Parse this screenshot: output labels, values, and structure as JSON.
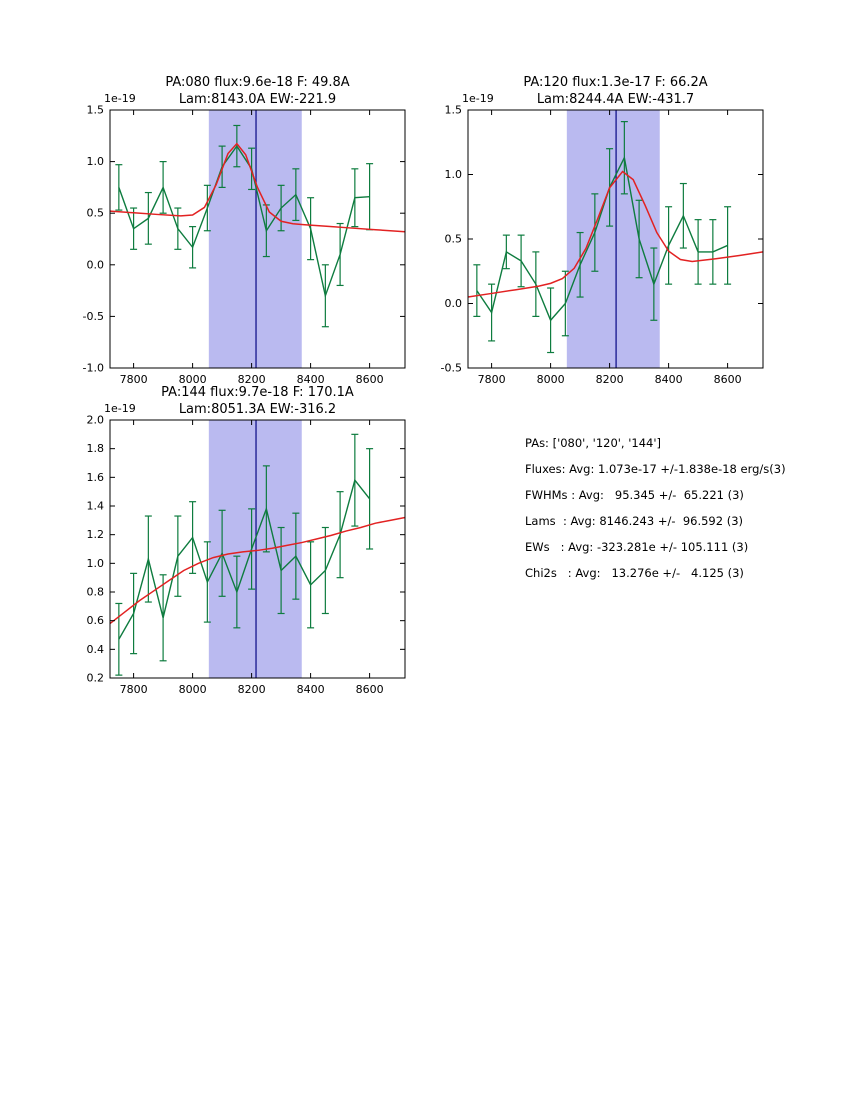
{
  "colors": {
    "data_line": "#0e7c3f",
    "fit_line": "#e22222",
    "band": "#babaf0",
    "vline": "#14148c",
    "axis": "#000000",
    "background": "#ffffff"
  },
  "chart_data": [
    {
      "type": "line",
      "title_line1": "PA:080 flux:9.6e-18 F: 49.8A",
      "title_line2": "Lam:8143.0A EW:-221.9",
      "y_offset_label": "1e-19",
      "xlim": [
        7720,
        8720
      ],
      "ylim": [
        -1.0,
        1.5
      ],
      "xticks": [
        "7800",
        "8000",
        "8200",
        "8400",
        "8600"
      ],
      "yticks": [
        "-1.0",
        "-0.5",
        "0.0",
        "0.5",
        "1.0",
        "1.5"
      ],
      "band": [
        8055,
        8370
      ],
      "vline": 8215,
      "series": [
        {
          "name": "data",
          "x": [
            7750,
            7800,
            7850,
            7900,
            7950,
            8000,
            8050,
            8100,
            8150,
            8200,
            8250,
            8300,
            8350,
            8400,
            8450,
            8500,
            8550,
            8600
          ],
          "y": [
            0.75,
            0.35,
            0.45,
            0.75,
            0.35,
            0.17,
            0.55,
            0.95,
            1.15,
            0.93,
            0.33,
            0.55,
            0.68,
            0.35,
            -0.3,
            0.1,
            0.65,
            0.66
          ],
          "yerr": [
            0.22,
            0.2,
            0.25,
            0.25,
            0.2,
            0.2,
            0.22,
            0.2,
            0.2,
            0.2,
            0.25,
            0.22,
            0.25,
            0.3,
            0.3,
            0.3,
            0.28,
            0.32
          ]
        },
        {
          "name": "fit",
          "x": [
            7720,
            7800,
            7880,
            7960,
            8000,
            8040,
            8080,
            8120,
            8150,
            8180,
            8220,
            8260,
            8300,
            8340,
            8380,
            8460,
            8540,
            8620,
            8720
          ],
          "y": [
            0.52,
            0.504,
            0.488,
            0.474,
            0.482,
            0.556,
            0.777,
            1.078,
            1.174,
            1.066,
            0.749,
            0.512,
            0.422,
            0.398,
            0.388,
            0.372,
            0.356,
            0.34,
            0.32
          ]
        }
      ]
    },
    {
      "type": "line",
      "title_line1": "PA:120 flux:1.3e-17 F: 66.2A",
      "title_line2": "Lam:8244.4A EW:-431.7",
      "y_offset_label": "1e-19",
      "xlim": [
        7720,
        8720
      ],
      "ylim": [
        -0.5,
        1.5
      ],
      "xticks": [
        "7800",
        "8000",
        "8200",
        "8400",
        "8600"
      ],
      "yticks": [
        "-0.5",
        "0.0",
        "0.5",
        "1.0",
        "1.5"
      ],
      "band": [
        8055,
        8370
      ],
      "vline": 8222,
      "series": [
        {
          "name": "data",
          "x": [
            7750,
            7800,
            7850,
            7900,
            7950,
            8000,
            8050,
            8100,
            8150,
            8200,
            8250,
            8300,
            8350,
            8400,
            8450,
            8500,
            8550,
            8600
          ],
          "y": [
            0.1,
            -0.07,
            0.4,
            0.33,
            0.15,
            -0.13,
            0.0,
            0.3,
            0.55,
            0.9,
            1.13,
            0.5,
            0.15,
            0.45,
            0.68,
            0.4,
            0.4,
            0.45
          ],
          "yerr": [
            0.2,
            0.22,
            0.13,
            0.2,
            0.25,
            0.25,
            0.25,
            0.25,
            0.3,
            0.3,
            0.28,
            0.3,
            0.28,
            0.3,
            0.25,
            0.25,
            0.25,
            0.3
          ]
        },
        {
          "name": "fit",
          "x": [
            7720,
            7800,
            7880,
            7960,
            8000,
            8040,
            8080,
            8120,
            8160,
            8200,
            8244,
            8280,
            8320,
            8360,
            8400,
            8440,
            8480,
            8560,
            8640,
            8720
          ],
          "y": [
            0.05,
            0.078,
            0.106,
            0.135,
            0.156,
            0.193,
            0.273,
            0.428,
            0.659,
            0.897,
            1.023,
            0.96,
            0.763,
            0.55,
            0.406,
            0.341,
            0.326,
            0.347,
            0.372,
            0.4
          ]
        }
      ]
    },
    {
      "type": "line",
      "title_line1": "PA:144 flux:9.7e-18 F: 170.1A",
      "title_line2": "Lam:8051.3A EW:-316.2",
      "y_offset_label": "1e-19",
      "xlim": [
        7720,
        8720
      ],
      "ylim": [
        0.2,
        2.0
      ],
      "xticks": [
        "7800",
        "8000",
        "8200",
        "8400",
        "8600"
      ],
      "yticks": [
        "0.2",
        "0.4",
        "0.6",
        "0.8",
        "1.0",
        "1.2",
        "1.4",
        "1.6",
        "1.8",
        "2.0"
      ],
      "band": [
        8055,
        8370
      ],
      "vline": 8215,
      "series": [
        {
          "name": "data",
          "x": [
            7750,
            7800,
            7850,
            7900,
            7950,
            8000,
            8050,
            8100,
            8150,
            8200,
            8250,
            8300,
            8350,
            8400,
            8450,
            8500,
            8550,
            8600
          ],
          "y": [
            0.47,
            0.65,
            1.03,
            0.62,
            1.05,
            1.18,
            0.87,
            1.07,
            0.8,
            1.1,
            1.38,
            0.95,
            1.05,
            0.85,
            0.95,
            1.2,
            1.58,
            1.45
          ],
          "yerr": [
            0.25,
            0.28,
            0.3,
            0.3,
            0.28,
            0.25,
            0.28,
            0.3,
            0.25,
            0.28,
            0.3,
            0.3,
            0.3,
            0.3,
            0.3,
            0.3,
            0.32,
            0.35
          ]
        },
        {
          "name": "fit",
          "x": [
            7720,
            7770,
            7820,
            7870,
            7920,
            7970,
            8020,
            8070,
            8120,
            8170,
            8220,
            8270,
            8320,
            8370,
            8420,
            8470,
            8520,
            8570,
            8620,
            8670,
            8720
          ],
          "y": [
            0.58,
            0.66,
            0.74,
            0.81,
            0.88,
            0.95,
            1.0,
            1.04,
            1.065,
            1.08,
            1.09,
            1.105,
            1.125,
            1.145,
            1.17,
            1.195,
            1.225,
            1.25,
            1.28,
            1.3,
            1.32
          ]
        }
      ]
    }
  ],
  "stats_panel": {
    "lines": [
      "PAs: ['080', '120', '144']",
      "Fluxes: Avg: 1.073e-17 +/-1.838e-18 erg/s(3)",
      "FWHMs : Avg:   95.345 +/-  65.221 (3)",
      "Lams  : Avg: 8146.243 +/-  96.592 (3)",
      "EWs   : Avg: -323.281e +/- 105.111 (3)",
      "Chi2s   : Avg:   13.276e +/-   4.125 (3)"
    ]
  }
}
